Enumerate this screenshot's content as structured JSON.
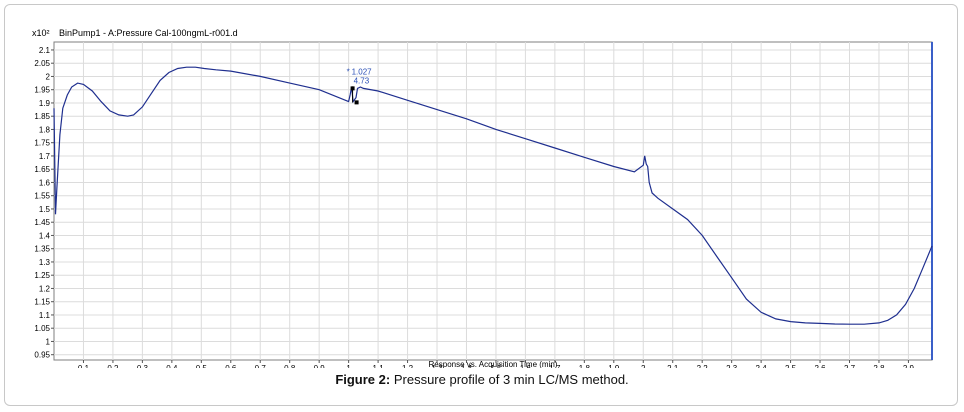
{
  "figure": {
    "caption_label": "Figure 2:",
    "caption_text": "Pressure profile of 3 min LC/MS method."
  },
  "chart_data": {
    "type": "line",
    "title": "BinPump1 - A:Pressure Cal-100ngmL-r001.d",
    "y_multiplier": "x10²",
    "xlabel": "Response vs. Acquisition Time (min)",
    "ylabel": "",
    "xlim": [
      0.0,
      2.98
    ],
    "ylim": [
      0.93,
      2.13
    ],
    "x_ticks": [
      0.1,
      0.2,
      0.3,
      0.4,
      0.5,
      0.6,
      0.7,
      0.8,
      0.9,
      1,
      1.1,
      1.2,
      1.3,
      1.4,
      1.5,
      1.6,
      1.7,
      1.8,
      1.9,
      2,
      2.1,
      2.2,
      2.3,
      2.4,
      2.5,
      2.6,
      2.7,
      2.8,
      2.9
    ],
    "y_ticks": [
      0.95,
      1,
      1.05,
      1.1,
      1.15,
      1.2,
      1.25,
      1.3,
      1.35,
      1.4,
      1.45,
      1.5,
      1.55,
      1.6,
      1.65,
      1.7,
      1.75,
      1.8,
      1.85,
      1.9,
      1.95,
      2,
      2.05,
      2.1
    ],
    "grid": true,
    "line_color": "#1f2f8f",
    "series": [
      {
        "name": "",
        "x": [
          0.0,
          0.005,
          0.01,
          0.02,
          0.03,
          0.045,
          0.06,
          0.08,
          0.1,
          0.13,
          0.16,
          0.19,
          0.22,
          0.25,
          0.27,
          0.3,
          0.33,
          0.36,
          0.39,
          0.42,
          0.45,
          0.48,
          0.51,
          0.55,
          0.6,
          0.7,
          0.8,
          0.9,
          1.0,
          1.005,
          1.01,
          1.015,
          1.025,
          1.03,
          1.04,
          1.05,
          1.1,
          1.2,
          1.3,
          1.4,
          1.5,
          1.6,
          1.7,
          1.8,
          1.9,
          1.97,
          2.0,
          2.005,
          2.01,
          2.015,
          2.02,
          2.03,
          2.05,
          2.1,
          2.15,
          2.2,
          2.25,
          2.3,
          2.35,
          2.4,
          2.45,
          2.5,
          2.55,
          2.6,
          2.65,
          2.7,
          2.75,
          2.8,
          2.83,
          2.86,
          2.89,
          2.92,
          2.95,
          2.98
        ],
        "y": [
          1.88,
          1.48,
          1.58,
          1.78,
          1.88,
          1.93,
          1.96,
          1.975,
          1.97,
          1.945,
          1.905,
          1.87,
          1.855,
          1.85,
          1.855,
          1.885,
          1.935,
          1.985,
          2.015,
          2.03,
          2.035,
          2.035,
          2.03,
          2.025,
          2.02,
          2.0,
          1.975,
          1.95,
          1.905,
          1.93,
          1.96,
          1.905,
          1.92,
          1.955,
          1.96,
          1.955,
          1.945,
          1.91,
          1.875,
          1.84,
          1.8,
          1.765,
          1.73,
          1.695,
          1.66,
          1.64,
          1.665,
          1.7,
          1.67,
          1.66,
          1.6,
          1.56,
          1.54,
          1.5,
          1.46,
          1.4,
          1.32,
          1.24,
          1.16,
          1.11,
          1.085,
          1.075,
          1.07,
          1.068,
          1.066,
          1.065,
          1.065,
          1.07,
          1.08,
          1.1,
          1.14,
          1.2,
          1.28,
          1.36
        ]
      }
    ],
    "annotation": {
      "x": 1.027,
      "y": 1.955,
      "label_value": "1.027",
      "label_extra": "4.73",
      "asterisk": "*"
    }
  }
}
